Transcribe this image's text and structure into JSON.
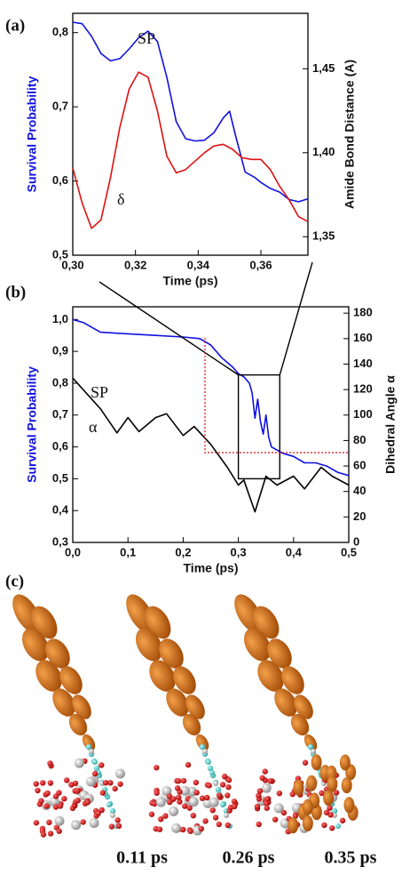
{
  "chart_data": [
    {
      "type": "line",
      "panel_label": "(a)",
      "xlabel": "Time (ps)",
      "ylabel": "Survival Probability",
      "y2label": "Amide Bond Distance (A)",
      "xlim": [
        0.3,
        0.375
      ],
      "xticks": [
        {
          "value": 0.3,
          "label": "0,30"
        },
        {
          "value": 0.32,
          "label": "0,32"
        },
        {
          "value": 0.34,
          "label": "0,34"
        },
        {
          "value": 0.36,
          "label": "0,36"
        }
      ],
      "ylim": [
        0.5,
        0.826
      ],
      "yticks": [
        {
          "value": 0.5,
          "label": "0,5"
        },
        {
          "value": 0.6,
          "label": "0,6"
        },
        {
          "value": 0.7,
          "label": "0,7"
        },
        {
          "value": 0.8,
          "label": "0,8"
        }
      ],
      "y2lim": [
        1.339,
        1.483
      ],
      "y2ticks": [
        {
          "value": 1.35,
          "label": "1,35"
        },
        {
          "value": 1.4,
          "label": "1,40"
        },
        {
          "value": 1.45,
          "label": "1,45"
        }
      ],
      "annotations": [
        "SP",
        "δ"
      ],
      "series": [
        {
          "name": "SP",
          "color": "#1010e0",
          "x": [
            0.3,
            0.303,
            0.306,
            0.309,
            0.312,
            0.315,
            0.318,
            0.321,
            0.324,
            0.327,
            0.33,
            0.333,
            0.336,
            0.339,
            0.342,
            0.345,
            0.348,
            0.35,
            0.352,
            0.355,
            0.358,
            0.36,
            0.363,
            0.366,
            0.369,
            0.372,
            0.375
          ],
          "values": [
            0.814,
            0.812,
            0.795,
            0.772,
            0.762,
            0.765,
            0.778,
            0.793,
            0.802,
            0.788,
            0.74,
            0.68,
            0.657,
            0.654,
            0.655,
            0.665,
            0.685,
            0.694,
            0.66,
            0.612,
            0.605,
            0.598,
            0.59,
            0.585,
            0.575,
            0.572,
            0.576
          ]
        },
        {
          "name": "δ",
          "color": "#e01010",
          "axis": "y2",
          "x": [
            0.3,
            0.303,
            0.306,
            0.309,
            0.312,
            0.315,
            0.318,
            0.321,
            0.324,
            0.327,
            0.33,
            0.333,
            0.336,
            0.339,
            0.342,
            0.345,
            0.348,
            0.351,
            0.354,
            0.357,
            0.36,
            0.363,
            0.366,
            0.369,
            0.372,
            0.375
          ],
          "values": [
            1.391,
            1.37,
            1.355,
            1.36,
            1.385,
            1.415,
            1.438,
            1.448,
            1.445,
            1.425,
            1.398,
            1.388,
            1.39,
            1.395,
            1.4,
            1.404,
            1.405,
            1.402,
            1.397,
            1.396,
            1.396,
            1.39,
            1.38,
            1.372,
            1.362,
            1.359
          ]
        }
      ]
    },
    {
      "type": "line",
      "panel_label": "(b)",
      "xlabel": "Time (ps)",
      "ylabel": "Survival Probability",
      "y2label": "Dihedral Angle α",
      "xlim": [
        0,
        0.5
      ],
      "xticks": [
        {
          "value": 0,
          "label": "0,0"
        },
        {
          "value": 0.1,
          "label": "0,1"
        },
        {
          "value": 0.2,
          "label": "0,2"
        },
        {
          "value": 0.3,
          "label": "0,3"
        },
        {
          "value": 0.4,
          "label": "0,4"
        },
        {
          "value": 0.5,
          "label": "0,5"
        }
      ],
      "ylim": [
        0.3,
        1.04
      ],
      "yticks": [
        {
          "value": 0.3,
          "label": "0,3"
        },
        {
          "value": 0.4,
          "label": "0,4"
        },
        {
          "value": 0.5,
          "label": "0,5"
        },
        {
          "value": 0.6,
          "label": "0,6"
        },
        {
          "value": 0.7,
          "label": "0,7"
        },
        {
          "value": 0.8,
          "label": "0,8"
        },
        {
          "value": 0.9,
          "label": "0,9"
        },
        {
          "value": 1.0,
          "label": "1,0"
        }
      ],
      "y2lim": [
        0,
        185
      ],
      "y2ticks": [
        0,
        20,
        40,
        60,
        80,
        100,
        120,
        140,
        160,
        180
      ],
      "annotations": [
        "SP",
        "α"
      ],
      "series": [
        {
          "name": "SP",
          "color": "#1010e0",
          "x": [
            0,
            0.02,
            0.05,
            0.1,
            0.15,
            0.2,
            0.23,
            0.25,
            0.27,
            0.29,
            0.3,
            0.31,
            0.32,
            0.325,
            0.33,
            0.335,
            0.34,
            0.345,
            0.35,
            0.355,
            0.36,
            0.38,
            0.4,
            0.42,
            0.44,
            0.46,
            0.48,
            0.5
          ],
          "values": [
            1.0,
            0.99,
            0.96,
            0.955,
            0.95,
            0.945,
            0.94,
            0.92,
            0.88,
            0.85,
            0.83,
            0.82,
            0.8,
            0.77,
            0.69,
            0.75,
            0.68,
            0.64,
            0.7,
            0.63,
            0.6,
            0.58,
            0.57,
            0.55,
            0.55,
            0.54,
            0.52,
            0.51
          ]
        },
        {
          "name": "α",
          "color": "#000000",
          "axis": "y2",
          "x": [
            0,
            0.05,
            0.08,
            0.1,
            0.12,
            0.15,
            0.17,
            0.2,
            0.22,
            0.25,
            0.28,
            0.3,
            0.31,
            0.33,
            0.35,
            0.37,
            0.4,
            0.42,
            0.45,
            0.47,
            0.5
          ],
          "values": [
            129,
            105,
            86,
            98,
            87,
            98,
            101,
            84,
            91,
            77,
            59,
            45,
            49,
            24,
            52,
            45,
            52,
            42,
            59,
            52,
            45
          ]
        }
      ]
    }
  ],
  "panel_c": {
    "label": "(c)",
    "captions": [
      "0.11 ps",
      "0.26 ps",
      "0.35 ps"
    ]
  }
}
